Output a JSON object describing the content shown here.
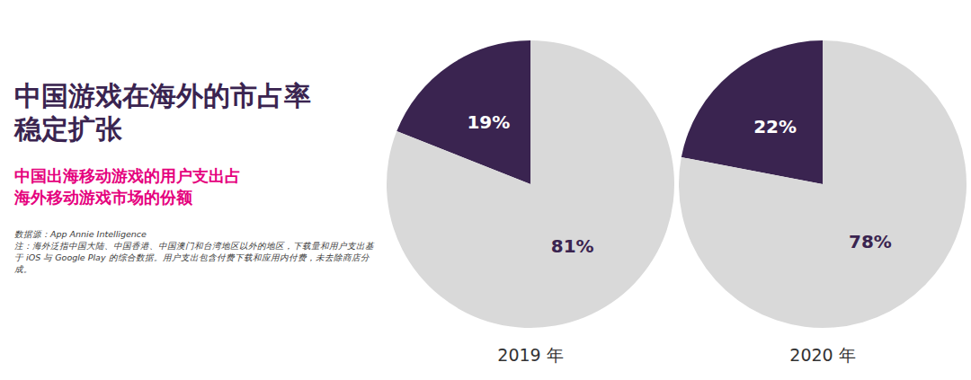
{
  "title": [
    "中国游戏在海外的市占率",
    "稳定扩张"
  ],
  "subtitle": [
    "中国出海移动游戏的用户支出占",
    "海外移动游戏市场的份额"
  ],
  "source": "数据源：App Annie Intelligence",
  "note": "注：海外泛指中国大陆、中国香港、中国澳门和台湾地区以外的地区，下载量和用户支出基于 iOS 与 Google Play 的综合数据。用户支出包含付费下载和应用内付费，未去除商店分成。",
  "chart_data": [
    {
      "type": "pie",
      "title": "2019 年",
      "values": [
        19,
        81
      ],
      "value_labels": [
        "19%",
        "81%"
      ],
      "colors": [
        "#3a2450",
        "#d9d9d9"
      ],
      "data_labels": true
    },
    {
      "type": "pie",
      "title": "2020 年",
      "values": [
        22,
        78
      ],
      "value_labels": [
        "22%",
        "78%"
      ],
      "colors": [
        "#3a2450",
        "#d9d9d9"
      ],
      "data_labels": true
    }
  ]
}
